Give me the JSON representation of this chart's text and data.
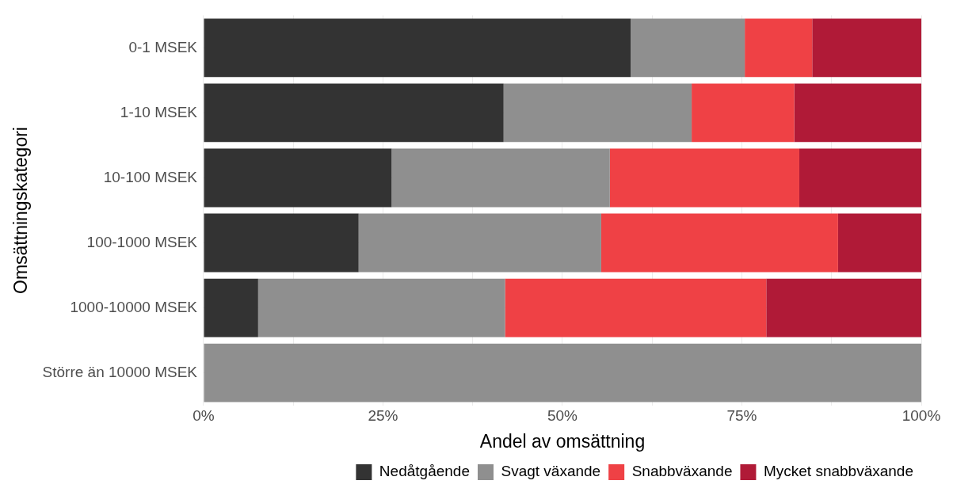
{
  "chart_data": {
    "type": "bar",
    "orientation": "horizontal",
    "stacked": true,
    "xlabel": "Andel av omsättning",
    "ylabel": "Omsättningskategori",
    "categories": [
      "0-1 MSEK",
      "1-10 MSEK",
      "10-100 MSEK",
      "100-1000 MSEK",
      "1000-10000 MSEK",
      "Större än 10000 MSEK"
    ],
    "series": [
      {
        "name": "Nedåtgående",
        "color": "#333333",
        "values": [
          59.5,
          41.8,
          26.2,
          21.6,
          7.6,
          0
        ]
      },
      {
        "name": "Svagt växande",
        "color": "#8f8f8f",
        "values": [
          15.9,
          26.2,
          30.4,
          33.8,
          34.4,
          100
        ]
      },
      {
        "name": "Snabbväxande",
        "color": "#ef4145",
        "values": [
          9.4,
          14.3,
          26.4,
          33.0,
          36.4,
          0
        ]
      },
      {
        "name": "Mycket snabbväxande",
        "color": "#b01a37",
        "values": [
          15.2,
          17.7,
          17.0,
          11.6,
          21.6,
          0
        ]
      }
    ],
    "xlim": [
      0,
      100
    ],
    "xticks": [
      {
        "value": 0,
        "label": "0%"
      },
      {
        "value": 12.5,
        "label": null
      },
      {
        "value": 25,
        "label": "25%"
      },
      {
        "value": 37.5,
        "label": null
      },
      {
        "value": 50,
        "label": "50%"
      },
      {
        "value": 62.5,
        "label": null
      },
      {
        "value": 75,
        "label": "75%"
      },
      {
        "value": 87.5,
        "label": null
      },
      {
        "value": 100,
        "label": "100%"
      }
    ],
    "grid": true,
    "legend": "bottom"
  }
}
